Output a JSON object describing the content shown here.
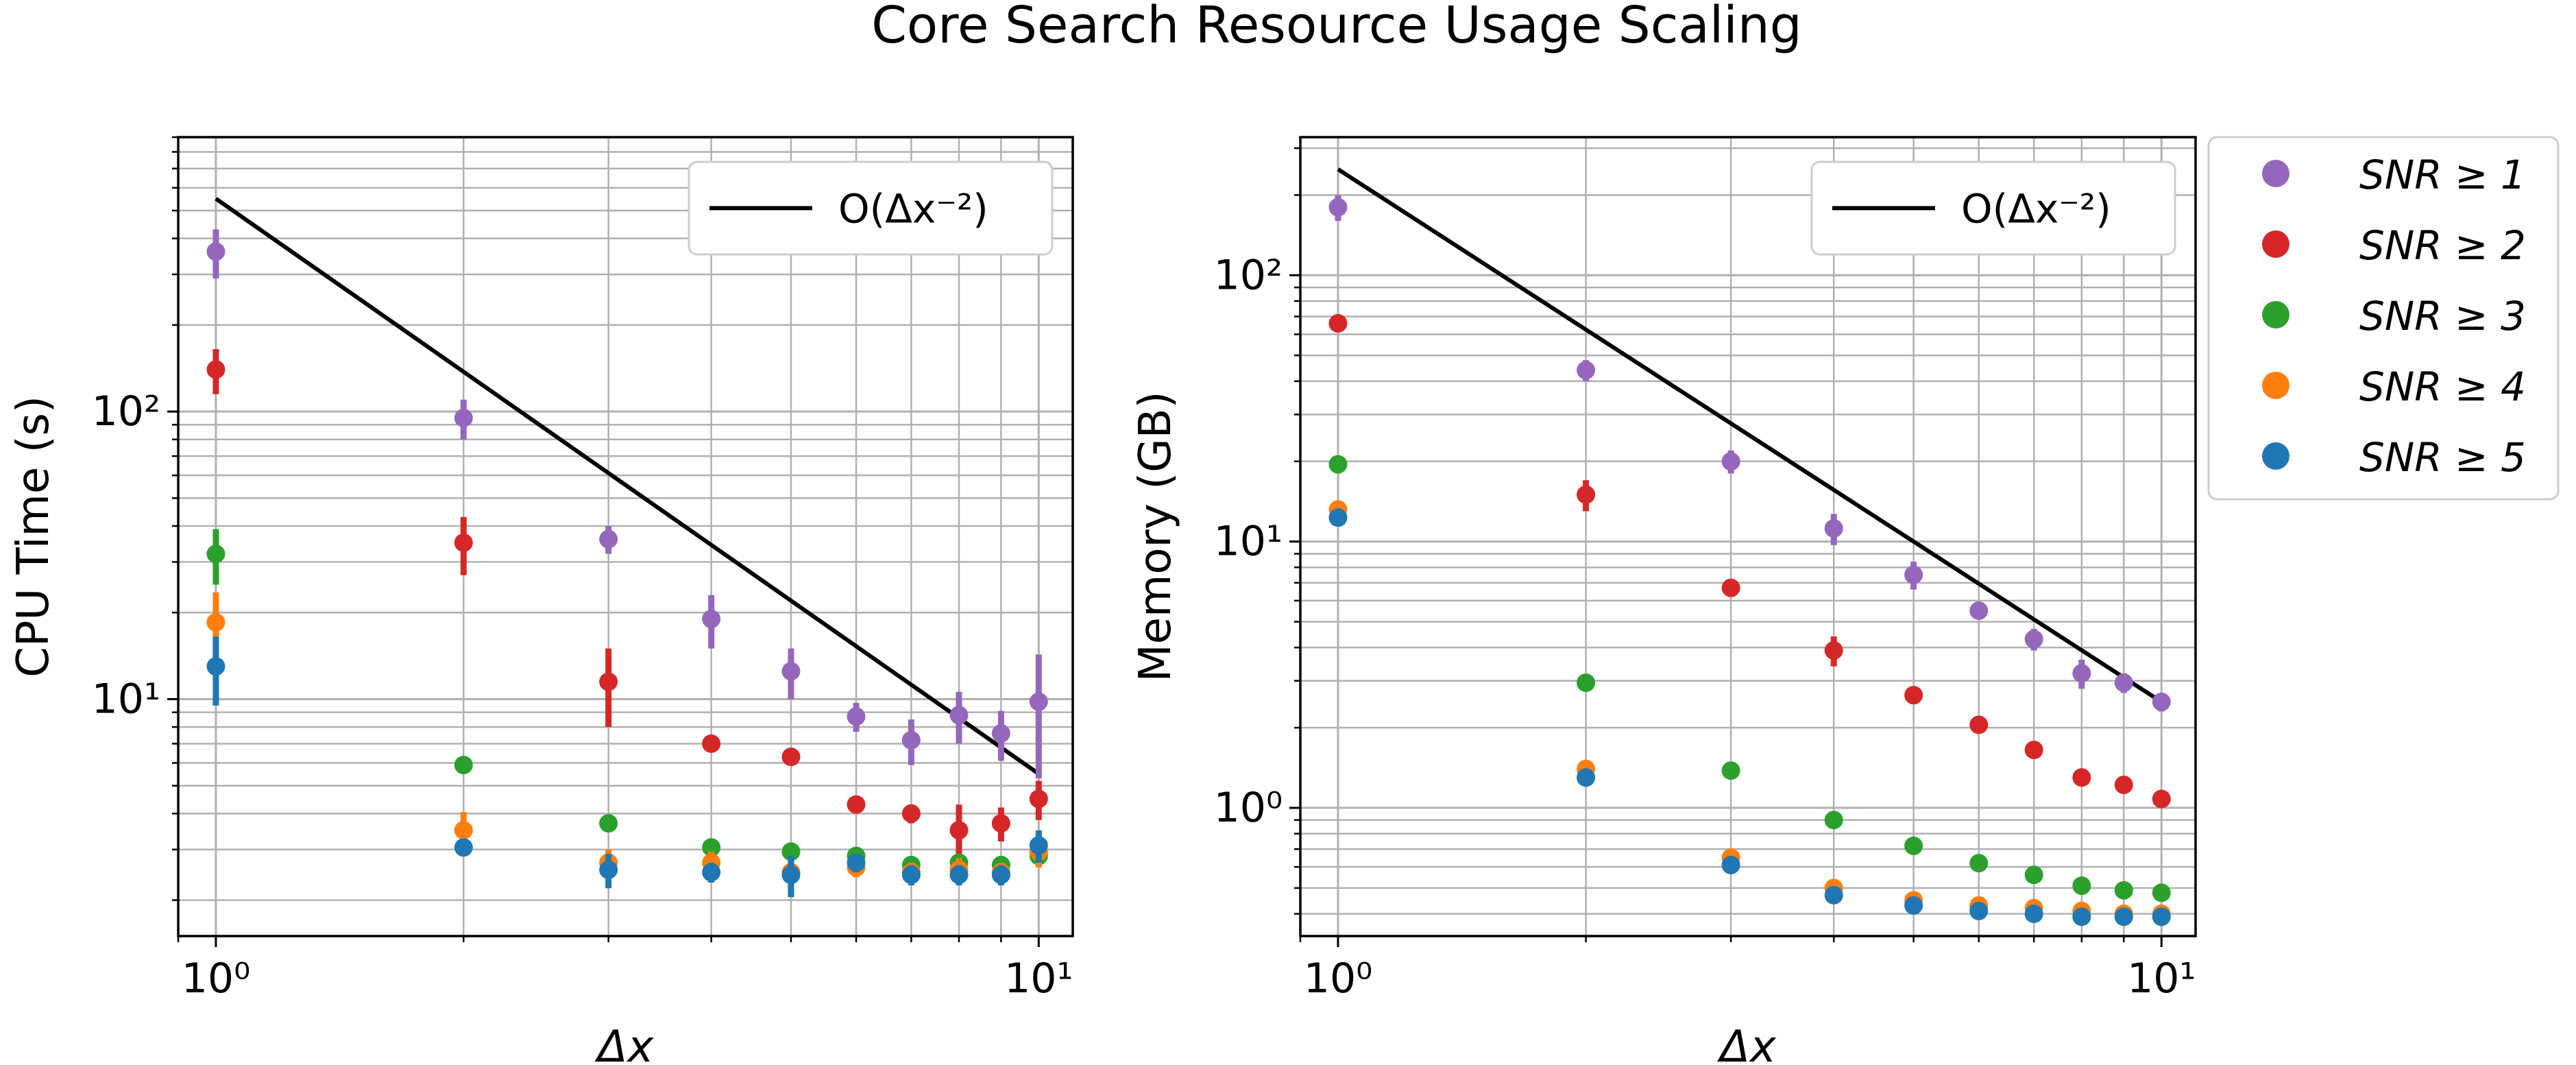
{
  "figure": {
    "title": "Core Search Resource Usage Scaling"
  },
  "colors": {
    "snr1": "#9467bd",
    "snr2": "#d62728",
    "snr3": "#2ca02c",
    "snr4": "#ff7f0e",
    "snr5": "#1f77b4",
    "reference": "#000000",
    "grid": "#b0b0b0"
  },
  "legend_series": [
    {
      "key": "snr1",
      "label": "SNR ≥ 1"
    },
    {
      "key": "snr2",
      "label": "SNR ≥ 2"
    },
    {
      "key": "snr3",
      "label": "SNR ≥ 3"
    },
    {
      "key": "snr4",
      "label": "SNR ≥ 4"
    },
    {
      "key": "snr5",
      "label": "SNR ≥ 5"
    }
  ],
  "chart_data": [
    {
      "type": "scatter",
      "xlabel": "Δx",
      "ylabel": "CPU Time (s)",
      "xscale": "log",
      "yscale": "log",
      "xlim": [
        0.9,
        11
      ],
      "ylim": [
        1.5,
        900
      ],
      "x_ticks": [
        {
          "value": 1,
          "label": "10⁰"
        },
        {
          "value": 10,
          "label": "10¹"
        }
      ],
      "y_ticks": [
        {
          "value": 10,
          "label": "10¹"
        },
        {
          "value": 100,
          "label": "10²"
        }
      ],
      "grid": true,
      "legend_position": "upper right",
      "reference_line": {
        "label": "O(Δx⁻²)",
        "x": [
          1,
          10
        ],
        "y": [
          550,
          5.5
        ]
      },
      "x": [
        1,
        2,
        3,
        4,
        5,
        6,
        7,
        8,
        9,
        10
      ],
      "series": [
        {
          "key": "snr1",
          "values": [
            360,
            95,
            36,
            19,
            12.5,
            8.7,
            7.2,
            8.8,
            7.6,
            9.8
          ],
          "errors": [
            70,
            15,
            4,
            4,
            2.5,
            1,
            1.3,
            1.8,
            1.5,
            4.5
          ]
        },
        {
          "key": "snr2",
          "values": [
            140,
            35,
            11.5,
            7,
            6.3,
            4.3,
            4,
            3.5,
            3.7,
            4.5
          ],
          "errors": [
            25,
            8,
            3.5,
            0.4,
            0.4,
            0.3,
            0.3,
            0.8,
            0.5,
            0.7
          ]
        },
        {
          "key": "snr3",
          "values": [
            32,
            5.9,
            3.7,
            3.05,
            2.95,
            2.85,
            2.65,
            2.7,
            2.65,
            2.85
          ],
          "errors": [
            7,
            0.3,
            0.2,
            0.15,
            0.15,
            0.15,
            0.15,
            0.2,
            0.15,
            0.25
          ]
        },
        {
          "key": "snr4",
          "values": [
            18.5,
            3.5,
            2.7,
            2.7,
            2.5,
            2.6,
            2.5,
            2.55,
            2.5,
            2.95
          ],
          "errors": [
            5,
            0.55,
            0.3,
            0.25,
            0.3,
            0.2,
            0.2,
            0.25,
            0.2,
            0.35
          ]
        },
        {
          "key": "snr5",
          "values": [
            13,
            3.05,
            2.55,
            2.5,
            2.45,
            2.7,
            2.45,
            2.45,
            2.45,
            3.1
          ],
          "errors": [
            3.5,
            0.2,
            0.35,
            0.2,
            0.4,
            0.2,
            0.2,
            0.2,
            0.2,
            0.4
          ]
        }
      ]
    },
    {
      "type": "scatter",
      "xlabel": "Δx",
      "ylabel": "Memory (GB)",
      "xscale": "log",
      "yscale": "log",
      "xlim": [
        0.9,
        11
      ],
      "ylim": [
        0.33,
        330
      ],
      "x_ticks": [
        {
          "value": 1,
          "label": "10⁰"
        },
        {
          "value": 10,
          "label": "10¹"
        }
      ],
      "y_ticks": [
        {
          "value": 1,
          "label": "10⁰"
        },
        {
          "value": 10,
          "label": "10¹"
        },
        {
          "value": 100,
          "label": "10²"
        }
      ],
      "grid": true,
      "legend_position": "upper right",
      "reference_line": {
        "label": "O(Δx⁻²)",
        "x": [
          1,
          10
        ],
        "y": [
          250,
          2.5
        ]
      },
      "x": [
        1,
        2,
        3,
        4,
        5,
        6,
        7,
        8,
        9,
        10
      ],
      "series": [
        {
          "key": "snr1",
          "values": [
            180,
            44,
            20,
            11.2,
            7.5,
            5.5,
            4.3,
            3.2,
            2.95,
            2.5
          ],
          "errors": [
            20,
            4,
            2,
            1.5,
            0.9,
            0.4,
            0.4,
            0.4,
            0.25,
            0.2
          ]
        },
        {
          "key": "snr2",
          "values": [
            66,
            15,
            6.7,
            3.9,
            2.65,
            2.05,
            1.65,
            1.3,
            1.22,
            1.08
          ],
          "errors": [
            5,
            2,
            0.5,
            0.5,
            0.2,
            0.1,
            0.08,
            0.08,
            0.06,
            0.05
          ]
        },
        {
          "key": "snr3",
          "values": [
            19.5,
            2.95,
            1.38,
            0.9,
            0.72,
            0.62,
            0.56,
            0.51,
            0.49,
            0.48
          ],
          "errors": [
            1.5,
            0.15,
            0.06,
            0.04,
            0.03,
            0.02,
            0.02,
            0.02,
            0.02,
            0.02
          ]
        },
        {
          "key": "snr4",
          "values": [
            13.2,
            1.4,
            0.65,
            0.5,
            0.45,
            0.43,
            0.42,
            0.41,
            0.4,
            0.4
          ],
          "errors": [
            0.8,
            0.07,
            0.03,
            0.02,
            0.02,
            0.02,
            0.02,
            0.02,
            0.02,
            0.02
          ]
        },
        {
          "key": "snr5",
          "values": [
            12.3,
            1.3,
            0.61,
            0.47,
            0.43,
            0.41,
            0.4,
            0.39,
            0.39,
            0.39
          ],
          "errors": [
            0.8,
            0.06,
            0.03,
            0.02,
            0.02,
            0.02,
            0.02,
            0.02,
            0.02,
            0.02
          ]
        }
      ]
    }
  ]
}
